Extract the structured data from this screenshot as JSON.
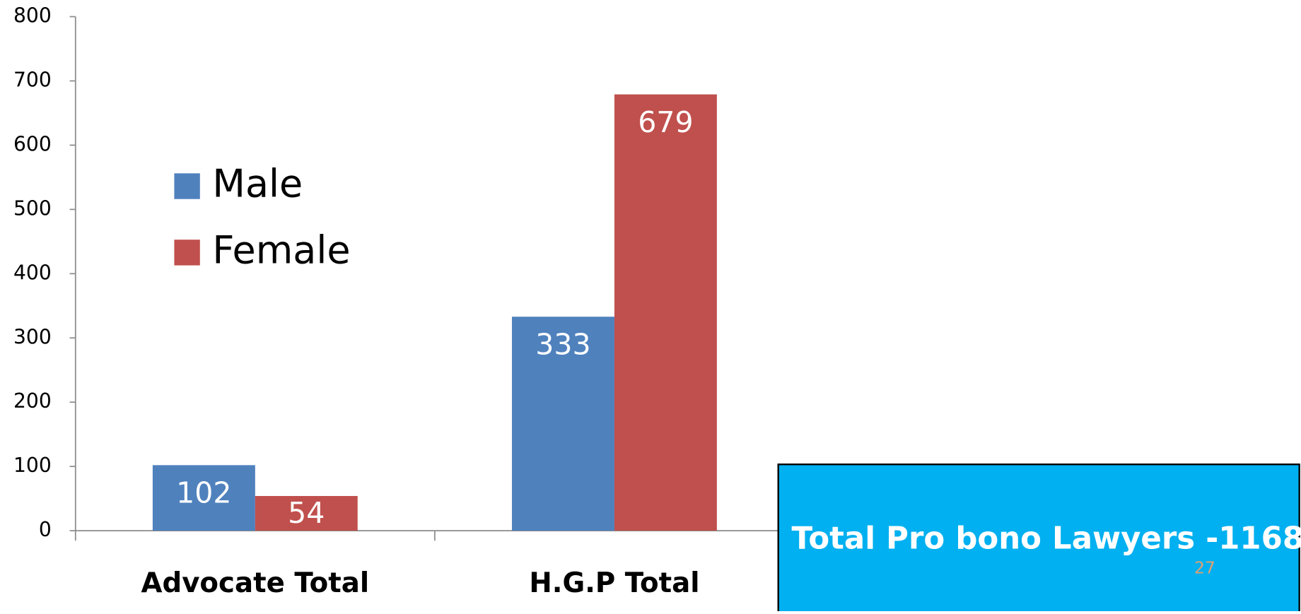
{
  "chart_data": {
    "type": "bar",
    "categories": [
      "Advocate Total",
      "H.G.P Total",
      null
    ],
    "series": [
      {
        "name": "Male",
        "color": "#4f81bd",
        "values": [
          102,
          333,
          null
        ]
      },
      {
        "name": "Female",
        "color": "#c0504d",
        "values": [
          54,
          679,
          null
        ]
      }
    ],
    "ylim": [
      0,
      800
    ],
    "yticks": [
      0,
      100,
      200,
      300,
      400,
      500,
      600,
      700,
      800
    ],
    "grid": false,
    "legend": "upper left",
    "annotations": [
      "Total Pro bono Lawyers -1168.",
      "27"
    ]
  }
}
